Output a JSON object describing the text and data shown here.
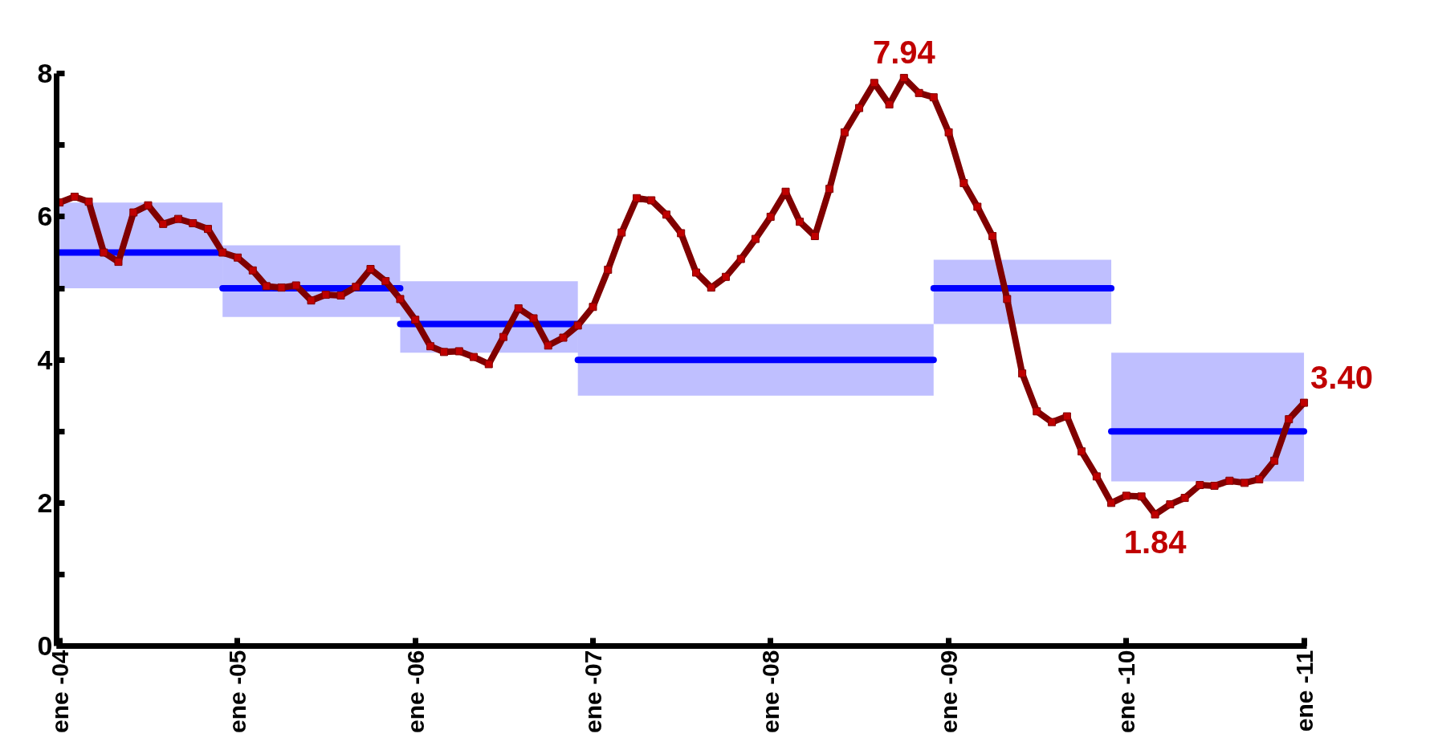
{
  "chart_data": {
    "type": "line",
    "xlim": [
      "2003-12-26",
      "2011-01-06"
    ],
    "xticks": [
      {
        "value": "2004-01",
        "label": "ene -04"
      },
      {
        "value": "2005-01",
        "label": "ene -05"
      },
      {
        "value": "2006-01",
        "label": "ene -06"
      },
      {
        "value": "2007-01",
        "label": "ene -07"
      },
      {
        "value": "2008-01",
        "label": "ene -08"
      },
      {
        "value": "2009-01",
        "label": "ene -09"
      },
      {
        "value": "2010-01",
        "label": "ene -10"
      },
      {
        "value": "2011-01",
        "label": "ene -11"
      }
    ],
    "ylim": [
      0,
      8
    ],
    "yticks": [
      0,
      {
        "value": 1,
        "label": null
      },
      2,
      {
        "value": 3,
        "label": null
      },
      4,
      {
        "value": 5,
        "label": null
      },
      6,
      {
        "value": 7,
        "label": null
      },
      8
    ],
    "grid": false,
    "series": [
      {
        "color": "#0000ff",
        "marker": "none",
        "x": [
          "2004-01",
          "2004-12"
        ],
        "values": [
          5.5,
          5.5
        ],
        "lower": [
          5.0,
          5.0
        ],
        "upper": [
          6.2,
          6.2
        ]
      },
      {
        "color": "#0000ff",
        "marker": "none",
        "x": [
          "2004-12",
          "2005-12"
        ],
        "values": [
          5.0,
          5.0
        ],
        "lower": [
          4.6,
          4.6
        ],
        "upper": [
          5.6,
          5.6
        ]
      },
      {
        "color": "#0000ff",
        "marker": "none",
        "x": [
          "2005-12",
          "2006-12"
        ],
        "values": [
          4.5,
          4.5
        ],
        "lower": [
          4.1,
          4.1
        ],
        "upper": [
          5.1,
          5.1
        ]
      },
      {
        "color": "#0000ff",
        "marker": "none",
        "x": [
          "2006-12",
          "2008-12"
        ],
        "values": [
          4.0,
          4.0
        ],
        "lower": [
          3.5,
          3.5
        ],
        "upper": [
          4.5,
          4.5
        ]
      },
      {
        "color": "#0000ff",
        "marker": "none",
        "x": [
          "2008-12",
          "2009-12"
        ],
        "values": [
          5.0,
          5.0
        ],
        "lower": [
          4.5,
          4.5
        ],
        "upper": [
          5.4,
          5.4
        ]
      },
      {
        "color": "#0000ff",
        "marker": "none",
        "x": [
          "2009-12",
          "2011-01"
        ],
        "values": [
          3.0,
          3.0
        ],
        "lower": [
          2.3,
          2.3
        ],
        "upper": [
          4.1,
          4.1
        ]
      },
      {
        "color": "#800000",
        "marker": "square",
        "x": [
          "2004-01",
          "2004-02",
          "2004-03",
          "2004-04",
          "2004-05",
          "2004-06",
          "2004-07",
          "2004-08",
          "2004-09",
          "2004-10",
          "2004-11",
          "2004-12",
          "2005-01",
          "2005-02",
          "2005-03",
          "2005-04",
          "2005-05",
          "2005-06",
          "2005-07",
          "2005-08",
          "2005-09",
          "2005-10",
          "2005-11",
          "2005-12",
          "2006-01",
          "2006-02",
          "2006-03",
          "2006-04",
          "2006-05",
          "2006-06",
          "2006-07",
          "2006-08",
          "2006-09",
          "2006-10",
          "2006-11",
          "2006-12",
          "2007-01",
          "2007-02",
          "2007-03",
          "2007-04",
          "2007-05",
          "2007-06",
          "2007-07",
          "2007-08",
          "2007-09",
          "2007-10",
          "2007-11",
          "2007-12",
          "2008-01",
          "2008-02",
          "2008-03",
          "2008-04",
          "2008-05",
          "2008-06",
          "2008-07",
          "2008-08",
          "2008-09",
          "2008-10",
          "2008-11",
          "2008-12",
          "2009-01",
          "2009-02",
          "2009-03",
          "2009-04",
          "2009-05",
          "2009-06",
          "2009-07",
          "2009-08",
          "2009-09",
          "2009-10",
          "2009-11",
          "2009-12",
          "2010-01",
          "2010-02",
          "2010-03",
          "2010-04",
          "2010-05",
          "2010-06",
          "2010-07",
          "2010-08",
          "2010-09",
          "2010-10",
          "2010-11",
          "2010-12",
          "2011-01"
        ],
        "values": [
          6.2,
          6.28,
          6.21,
          5.5,
          5.37,
          6.06,
          6.16,
          5.9,
          5.97,
          5.91,
          5.83,
          5.5,
          5.43,
          5.25,
          5.03,
          5.01,
          5.04,
          4.83,
          4.91,
          4.9,
          5.02,
          5.27,
          5.1,
          4.85,
          4.56,
          4.19,
          4.11,
          4.12,
          4.04,
          3.94,
          4.32,
          4.72,
          4.58,
          4.2,
          4.31,
          4.48,
          4.74,
          5.26,
          5.78,
          6.26,
          6.23,
          6.03,
          5.77,
          5.22,
          5.01,
          5.16,
          5.41,
          5.69,
          6.0,
          6.35,
          5.93,
          5.73,
          6.39,
          7.18,
          7.52,
          7.87,
          7.57,
          7.94,
          7.73,
          7.67,
          7.18,
          6.47,
          6.14,
          5.73,
          4.85,
          3.81,
          3.28,
          3.13,
          3.21,
          2.72,
          2.37,
          2.0,
          2.1,
          2.09,
          1.84,
          1.98,
          2.07,
          2.25,
          2.24,
          2.31,
          2.28,
          2.33,
          2.59,
          3.17,
          3.4
        ]
      }
    ],
    "annotations": [
      {
        "text": "7.94",
        "x": "2008-10",
        "y": 7.94
      },
      {
        "text": "1.84",
        "x": "2010-03",
        "y": 1.84
      },
      {
        "text": "3.40",
        "x": "2011-01",
        "y": 3.4
      }
    ]
  }
}
